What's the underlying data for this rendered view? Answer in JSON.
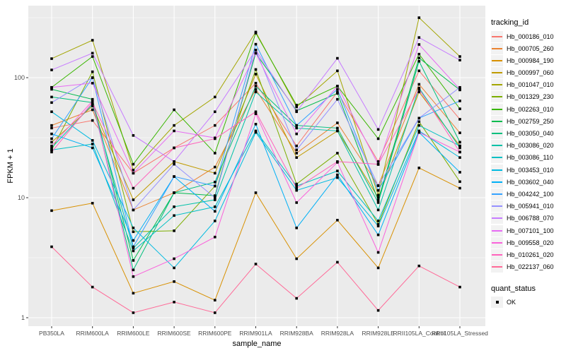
{
  "chart_data": {
    "type": "line",
    "title": "",
    "xlabel": "sample_name",
    "ylabel": "FPKM + 1",
    "y_scale": "log10",
    "y_ticks": [
      1,
      10,
      100
    ],
    "y_tick_labels": [
      "1",
      "10",
      "100"
    ],
    "ylim": [
      1,
      400
    ],
    "grid": "on",
    "panel_bg": "#EBEBEB",
    "grid_color": "#FFFFFF",
    "point_marker": "black-square",
    "legend_position": "right",
    "legend_title": "tracking_id",
    "legend2_title": "quant_status",
    "legend2_items": [
      {
        "label": "OK",
        "marker": "black-square"
      }
    ],
    "categories": [
      "PB350LA",
      "RRIM600LA",
      "RRIM600LE",
      "RRIM600SE",
      "RRIM600PE",
      "RRIM901LA",
      "RRIM928BA",
      "RRIM928LA",
      "RRIM928LE",
      "RRII105LA_Control",
      "RRII105LA_Stressed"
    ],
    "series": [
      {
        "name": "Hb_000186_010",
        "color": "#F8766D",
        "values": [
          38,
          44,
          16,
          26,
          40,
          90,
          27,
          76,
          20,
          114,
          45
        ]
      },
      {
        "name": "Hb_000705_260",
        "color": "#EA8331",
        "values": [
          40,
          54,
          7.9,
          11,
          18,
          80,
          23.5,
          42,
          12.6,
          88,
          34.7
        ]
      },
      {
        "name": "Hb_000984_190",
        "color": "#D89000",
        "values": [
          7.8,
          9.0,
          1.6,
          2.0,
          1.4,
          11,
          3.1,
          6.5,
          2.6,
          17.7,
          12
        ]
      },
      {
        "name": "Hb_000997_060",
        "color": "#C09B00",
        "values": [
          29,
          58,
          9.6,
          20,
          16,
          107,
          21.6,
          36,
          10,
          76,
          27
        ]
      },
      {
        "name": "Hb_001047_010",
        "color": "#A3A500",
        "values": [
          144,
          205,
          17,
          40,
          69,
          240,
          57,
          114,
          10.5,
          316,
          150
        ]
      },
      {
        "name": "Hb_001329_230",
        "color": "#7CAE00",
        "values": [
          25,
          112,
          5.2,
          5.3,
          12.5,
          117,
          13,
          23.5,
          6.0,
          43,
          13.6
        ]
      },
      {
        "name": "Hb_002263_010",
        "color": "#39B600",
        "values": [
          83,
          150,
          19,
          54,
          23.5,
          235,
          59,
          85,
          31,
          157,
          55
        ]
      },
      {
        "name": "Hb_002759_250",
        "color": "#00BB4E",
        "values": [
          80,
          66,
          3.0,
          11,
          10.4,
          160,
          53,
          74,
          9.5,
          146,
          79
        ]
      },
      {
        "name": "Hb_003050_040",
        "color": "#00BF7D",
        "values": [
          69,
          62,
          2.5,
          11,
          13.5,
          85,
          40,
          38,
          9.1,
          137,
          29
        ]
      },
      {
        "name": "Hb_003086_020",
        "color": "#00C1A7",
        "values": [
          26,
          60,
          3.8,
          8.4,
          9.6,
          76,
          38,
          36,
          7.9,
          82,
          26
        ]
      },
      {
        "name": "Hb_003086_110",
        "color": "#00BFC4",
        "values": [
          25,
          28,
          3.6,
          7.1,
          8.4,
          36,
          12.5,
          16.7,
          6.4,
          40,
          27
        ]
      },
      {
        "name": "Hb_003453_010",
        "color": "#00BAE0",
        "values": [
          52,
          30,
          5.6,
          2.6,
          6.4,
          35,
          11.5,
          14.7,
          5.8,
          36,
          21.6
        ]
      },
      {
        "name": "Hb_003602_040",
        "color": "#00B0F6",
        "values": [
          34,
          26,
          4.4,
          15,
          7.7,
          41,
          5.6,
          15.5,
          4.9,
          35,
          16.3
        ]
      },
      {
        "name": "Hb_004242_100",
        "color": "#35A2FF",
        "values": [
          31,
          100,
          3.9,
          15,
          12.5,
          190,
          40,
          80,
          11.5,
          46,
          64
        ]
      },
      {
        "name": "Hb_005941_010",
        "color": "#9590FF",
        "values": [
          62,
          100,
          7.9,
          19,
          10,
          170,
          25,
          66,
          12.6,
          46,
          83
        ]
      },
      {
        "name": "Hb_006788_070",
        "color": "#C77CFF",
        "values": [
          116,
          160,
          33,
          20,
          52,
          170,
          52,
          145,
          37,
          216,
          140
        ]
      },
      {
        "name": "Hb_007101_100",
        "color": "#E76BF3",
        "values": [
          83,
          90,
          16,
          36,
          31.5,
          160,
          34,
          85,
          18.9,
          189,
          80
        ]
      },
      {
        "name": "Hb_009558_020",
        "color": "#FA62DB",
        "values": [
          27,
          64,
          2.2,
          3.1,
          4.7,
          50,
          9.1,
          19.7,
          3.5,
          35,
          24
        ]
      },
      {
        "name": "Hb_010261_020",
        "color": "#FF62BC",
        "values": [
          24,
          62,
          12,
          26,
          31,
          52,
          12,
          20,
          19,
          80,
          24
        ]
      },
      {
        "name": "Hb_022137_060",
        "color": "#FF6A98",
        "values": [
          3.9,
          1.8,
          1.1,
          1.35,
          1.1,
          2.8,
          1.45,
          2.9,
          1.15,
          2.7,
          1.8
        ]
      }
    ]
  }
}
